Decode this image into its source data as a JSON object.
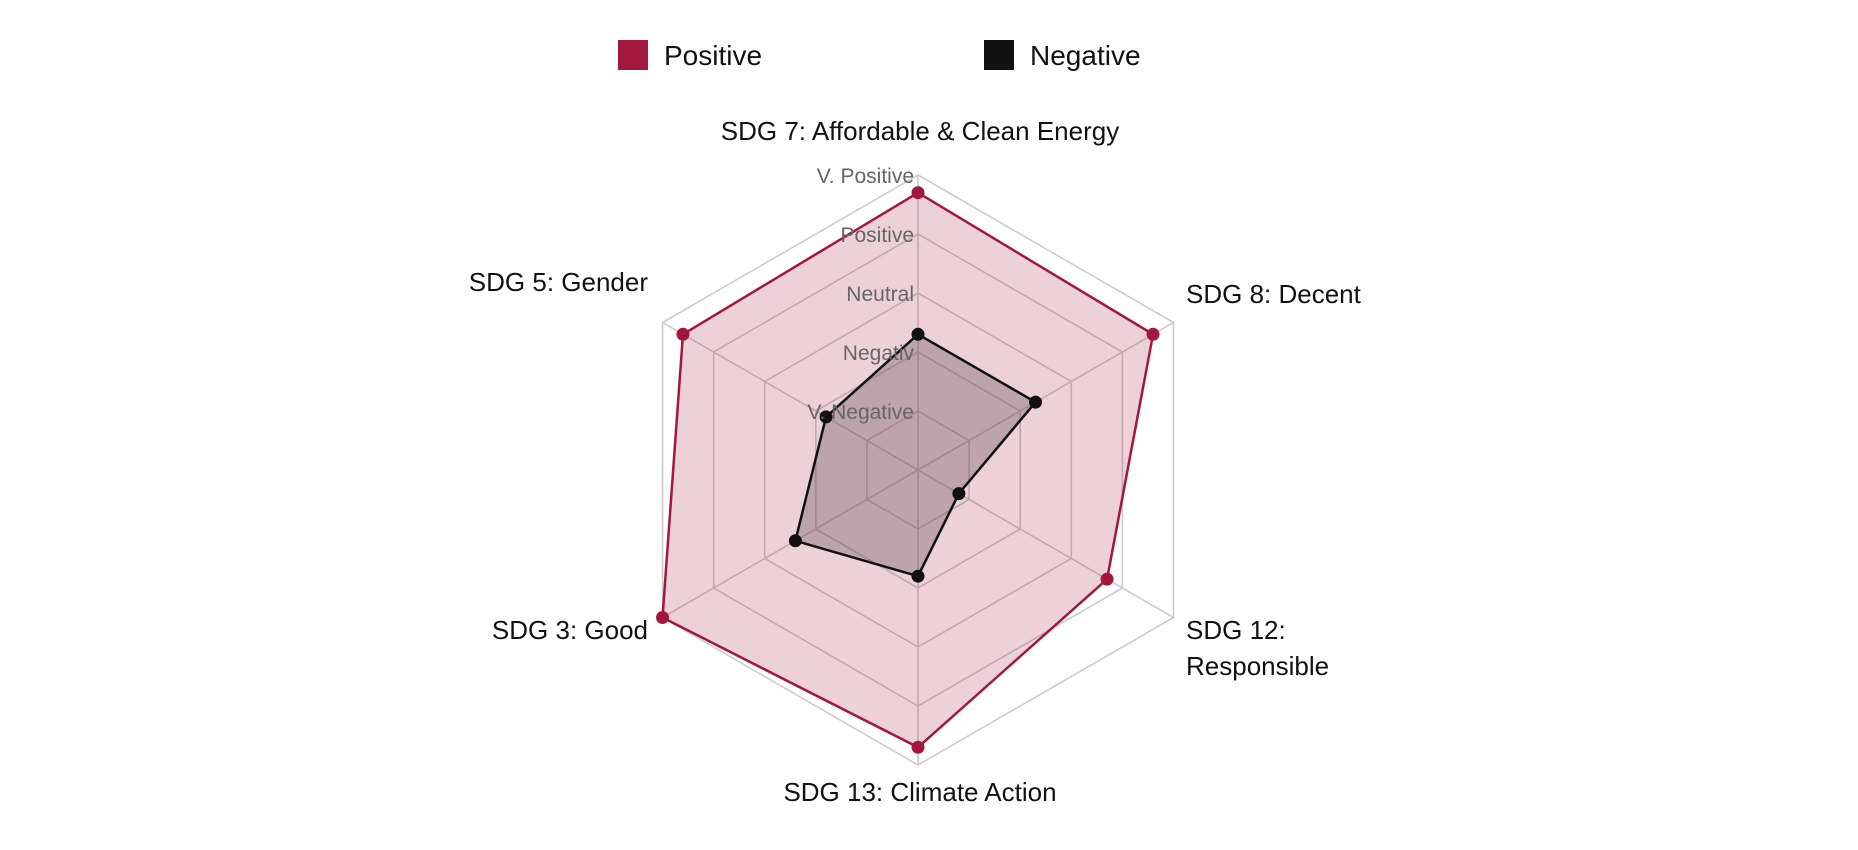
{
  "chart_data": {
    "type": "radar",
    "categories": [
      "SDG 7: Affordable & Clean Energy",
      "SDG 8: Decent",
      "SDG 12: Responsible",
      "SDG 13: Climate Action",
      "SDG 3: Good",
      "SDG 5: Gender"
    ],
    "levels": [
      "V. Negative",
      "Negativ",
      "Neutral",
      "Positive",
      "V. Positive"
    ],
    "rmax": 5,
    "series": [
      {
        "name": "Positive",
        "color": "#a3173f",
        "fill": "rgba(163,23,63,0.2)",
        "values": [
          4.7,
          4.6,
          3.7,
          4.7,
          5.0,
          4.6
        ]
      },
      {
        "name": "Negative",
        "color": "#111111",
        "fill": "rgba(80,60,70,0.3)",
        "values": [
          2.3,
          2.3,
          0.8,
          1.8,
          2.4,
          1.8
        ]
      }
    ],
    "legend_position": "top",
    "grid": true
  }
}
